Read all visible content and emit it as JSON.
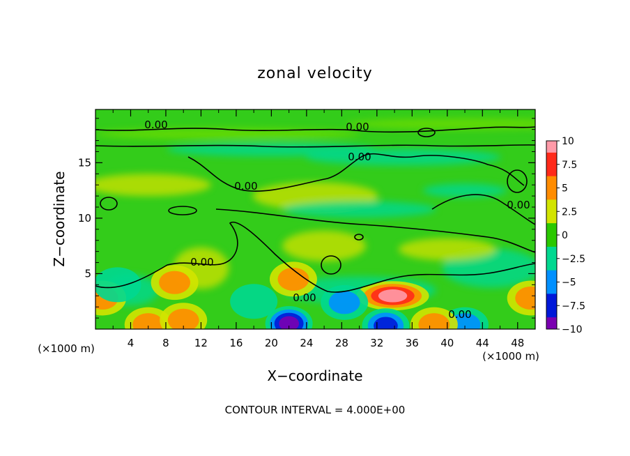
{
  "chart_data": {
    "type": "heatmap",
    "title": "zonal velocity",
    "xlabel": "X−coordinate",
    "ylabel": "Z−coordinate",
    "x_unit": "(×1000 m)",
    "z_unit": "(×1000 m)",
    "footer": "CONTOUR INTERVAL = 4.000E+00",
    "xlim": [
      0,
      50
    ],
    "ylim": [
      0,
      19.8
    ],
    "xticks": [
      4,
      8,
      12,
      16,
      20,
      24,
      28,
      32,
      36,
      40,
      44,
      48
    ],
    "xtick_labels": [
      "4",
      "8",
      "12",
      "16",
      "20",
      "24",
      "28",
      "32",
      "36",
      "40",
      "44",
      "48"
    ],
    "yticks": [
      5,
      10,
      15
    ],
    "ytick_labels": [
      "5",
      "10",
      "15"
    ],
    "colorbar": {
      "range": [
        -10,
        10
      ],
      "ticks": [
        10,
        7.5,
        5,
        2.5,
        0,
        -2.5,
        -5,
        -7.5,
        -10
      ],
      "tick_labels": [
        "10",
        "7.5",
        "5",
        "2.5",
        "0",
        "−2.5",
        "−5",
        "−7.5",
        "−10"
      ],
      "colors": [
        "#ff9aa8",
        "#ff2a1a",
        "#ff8c00",
        "#d2e400",
        "#2ac800",
        "#00d890",
        "#0090ff",
        "#0018d8",
        "#7a00b0"
      ]
    },
    "contour_label": "0.00",
    "contour_interval": 4.0,
    "features": [
      {
        "name": "positive-core-32-36",
        "x": 33.8,
        "z": 3.0,
        "value": 10
      },
      {
        "name": "negative-core-20-24",
        "x": 22.0,
        "z": 0.5,
        "value": -10
      },
      {
        "name": "negative-core-32",
        "x": 33.0,
        "z": 0.3,
        "value": -7
      },
      {
        "name": "negative-core-42",
        "x": 42.0,
        "z": 0.4,
        "value": -5
      },
      {
        "name": "positive-left-edge",
        "x": 0.8,
        "z": 2.8,
        "value": 6
      },
      {
        "name": "positive-near-6",
        "x": 6.0,
        "z": 0.4,
        "value": 6
      },
      {
        "name": "positive-near-10",
        "x": 10.0,
        "z": 0.8,
        "value": 5
      },
      {
        "name": "positive-near-22",
        "x": 22.5,
        "z": 4.5,
        "value": 5
      },
      {
        "name": "positive-near-9",
        "x": 9.0,
        "z": 4.2,
        "value": 4
      },
      {
        "name": "positive-right-edge",
        "x": 49.5,
        "z": 2.8,
        "value": 5
      },
      {
        "name": "positive-near-38",
        "x": 38.5,
        "z": 0.4,
        "value": 4
      },
      {
        "name": "negative-near-28",
        "x": 28.3,
        "z": 2.4,
        "value": -4
      },
      {
        "name": "negative-near-2",
        "x": 2.5,
        "z": 4.0,
        "value": -2.5
      },
      {
        "name": "negative-near-18",
        "x": 18.0,
        "z": 2.5,
        "value": -3
      }
    ]
  }
}
